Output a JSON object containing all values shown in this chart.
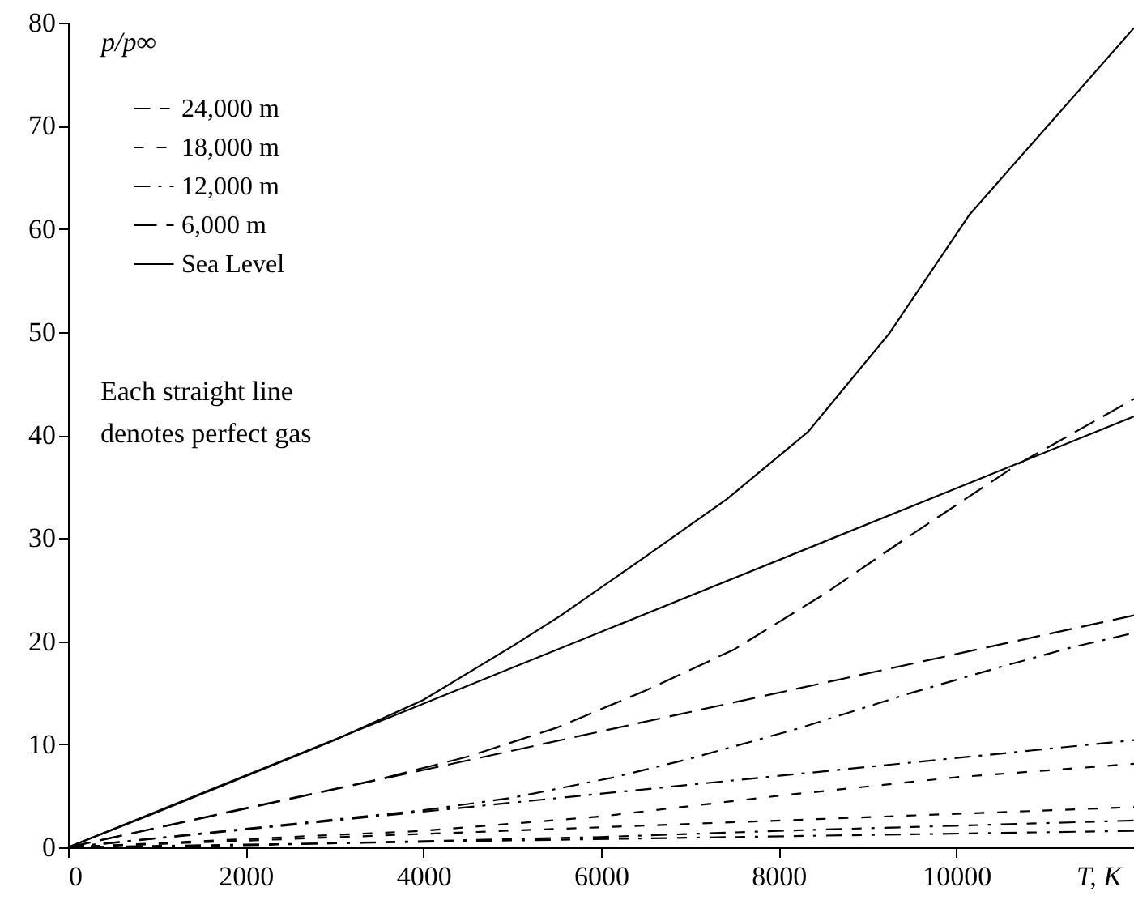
{
  "chart_data": {
    "type": "line",
    "xlabel": "T, K",
    "ylabel": "p/p∞",
    "xlim": [
      0,
      12000
    ],
    "ylim": [
      0,
      80
    ],
    "xticks": [
      0,
      2000,
      4000,
      6000,
      8000,
      10000
    ],
    "yticks": [
      0,
      10,
      20,
      30,
      40,
      50,
      60,
      70,
      80
    ],
    "grid": false,
    "legend": "top left",
    "marker": "none",
    "annotations": [
      "Each straight line\ndenotes perfect gas"
    ],
    "series": [
      {
        "name": "24,000 m",
        "color": "#000000",
        "line_style": "dashdotdash",
        "x": [
          0,
          2000,
          4000,
          6000,
          8000,
          10000,
          12000
        ],
        "values": [
          0,
          0.2,
          0.6,
          1.0,
          1.6,
          2.1,
          2.6
        ]
      },
      {
        "name": "18,000 m",
        "color": "#000000",
        "line_style": "shortdashed",
        "x": [
          0,
          2000,
          4000,
          6000,
          8000,
          10000,
          12000
        ],
        "values": [
          0,
          0.8,
          1.6,
          3.0,
          5.0,
          6.8,
          8.1
        ]
      },
      {
        "name": "12,000 m",
        "color": "#000000",
        "line_style": "dashdot",
        "x": [
          0,
          2000,
          4000,
          5000,
          6150,
          7000,
          8210,
          9500,
          10500,
          11300,
          12000
        ],
        "values": [
          0,
          1.8,
          3.6,
          4.8,
          6.8,
          8.6,
          11.5,
          15.0,
          17.5,
          19.4,
          20.8
        ]
      },
      {
        "name": "6,000 m",
        "color": "#000000",
        "line_style": "dashed",
        "x": [
          0,
          2000,
          3500,
          4500,
          5500,
          6500,
          7500,
          8500,
          9420,
          10700,
          12000
        ],
        "values": [
          0,
          3.8,
          6.6,
          8.8,
          11.6,
          15.2,
          19.2,
          24.5,
          29.9,
          37.2,
          43.5
        ]
      },
      {
        "name": "Sea Level",
        "color": "#000000",
        "line_style": "solid",
        "x": [
          0,
          1000,
          2000,
          3000,
          4000,
          5000,
          5550,
          6500,
          7420,
          8330,
          9240,
          10150,
          11060,
          12000
        ],
        "values": [
          0,
          3.4,
          6.9,
          10.4,
          14.3,
          19.5,
          22.5,
          28.2,
          33.8,
          40.3,
          49.8,
          61.4,
          70.3,
          79.5
        ]
      },
      {
        "color": "#000000",
        "line_style": "dashdotdash",
        "x": [
          0,
          12000
        ],
        "values": [
          0,
          1.6
        ]
      },
      {
        "color": "#000000",
        "line_style": "shortdashed",
        "x": [
          0,
          12000
        ],
        "values": [
          0,
          3.9
        ]
      },
      {
        "color": "#000000",
        "line_style": "dashdot",
        "x": [
          0,
          12000
        ],
        "values": [
          0,
          10.4
        ]
      },
      {
        "color": "#000000",
        "line_style": "dashed",
        "x": [
          0,
          12000
        ],
        "values": [
          0,
          22.5
        ]
      },
      {
        "color": "#000000",
        "line_style": "solid",
        "x": [
          0,
          12000
        ],
        "values": [
          0,
          41.8
        ]
      }
    ]
  }
}
